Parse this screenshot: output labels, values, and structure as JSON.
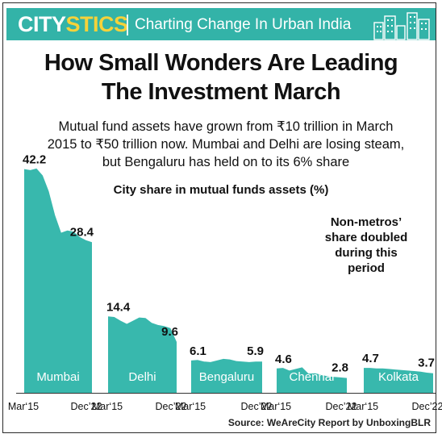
{
  "header": {
    "logo_part1": "CITY",
    "logo_part2": "STICS",
    "tagline": "Charting Change In Urban India"
  },
  "headline": {
    "line1": "How Small Wonders Are Leading",
    "line2": "The Investment March"
  },
  "subhead": {
    "line1": "Mutual fund assets have grown from ₹10 trillion in March",
    "line2": "2015 to ₹50 trillion now. Mumbai and Delhi are losing steam,",
    "line3": "but Bengaluru has held on to its 6% share"
  },
  "colors": {
    "brand": "#33b3a8",
    "accent": "#f5d23a",
    "area_fill": "#38b8ad"
  },
  "chart_data": {
    "type": "area",
    "title": "City share in mutual funds assets (%)",
    "annotation": [
      "Non-metros’",
      "share doubled",
      "during this",
      "period"
    ],
    "xlabels": [
      "Mar‘15",
      "Dec’22"
    ],
    "series": [
      {
        "name": "Mumbai",
        "start_label": "42.2",
        "end_label": "28.4",
        "values": [
          42.2,
          42.0,
          42.3,
          41.0,
          38.0,
          33.5,
          30.2,
          30.6,
          30.4,
          29.4,
          28.8,
          28.4
        ]
      },
      {
        "name": "Delhi",
        "start_label": "14.4",
        "end_label": "9.6",
        "values": [
          14.4,
          14.3,
          13.6,
          13.0,
          13.6,
          14.2,
          14.1,
          13.2,
          12.8,
          12.6,
          12.2,
          9.6
        ]
      },
      {
        "name": "Bengaluru",
        "start_label": "6.1",
        "end_label": "5.9",
        "values": [
          6.1,
          6.2,
          5.9,
          5.8,
          6.1,
          6.4,
          6.3,
          6.0,
          5.9,
          5.8,
          5.9,
          5.9
        ]
      },
      {
        "name": "Chennai",
        "start_label": "4.6",
        "end_label": "2.8",
        "values": [
          4.6,
          4.7,
          4.2,
          4.5,
          4.8,
          3.6,
          3.7,
          3.4,
          3.1,
          3.0,
          2.9,
          2.8
        ]
      },
      {
        "name": "Kolkata",
        "start_label": "4.7",
        "end_label": "3.7",
        "values": [
          4.7,
          4.7,
          4.6,
          4.6,
          4.5,
          4.4,
          4.3,
          4.2,
          4.1,
          4.0,
          3.8,
          3.7
        ]
      }
    ]
  },
  "source": "Source: WeAreCity Report by UnboxingBLR"
}
